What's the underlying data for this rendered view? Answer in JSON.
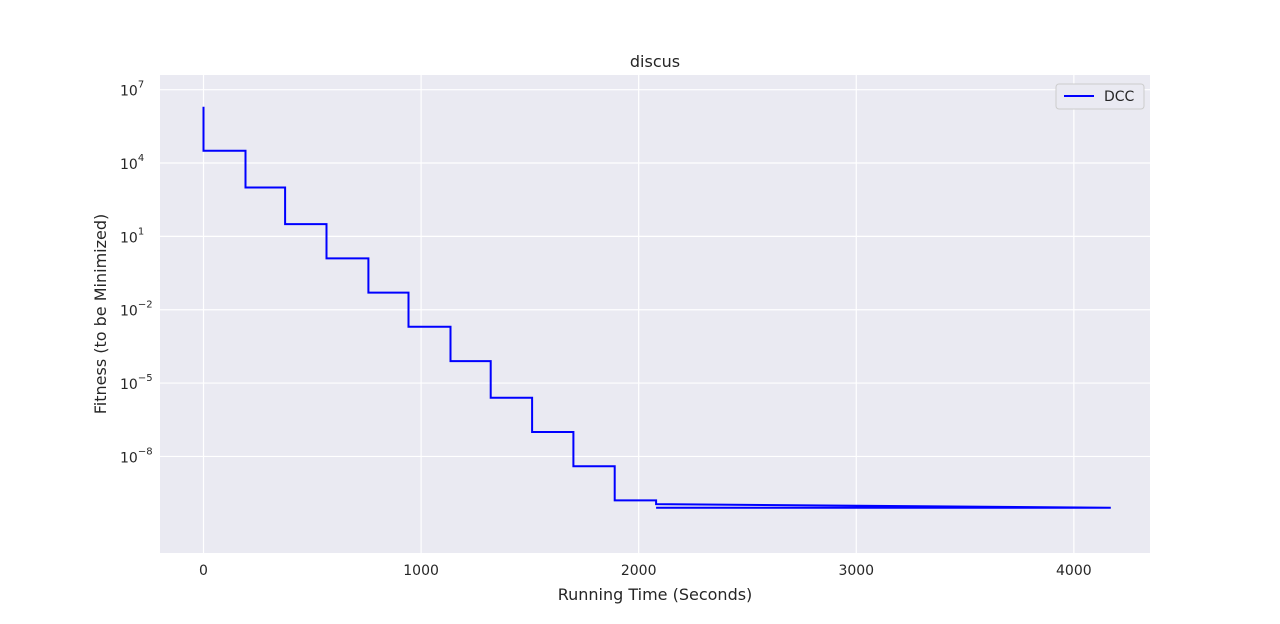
{
  "chart_data": {
    "type": "line",
    "title": "discus",
    "xlabel": "Running Time (Seconds)",
    "ylabel": "Fitness (to be Minimized)",
    "xlim": [
      -200,
      4350
    ],
    "yscale": "log",
    "ylim_exponent": [
      -11.95,
      7.6
    ],
    "x_ticks": [
      0,
      1000,
      2000,
      3000,
      4000
    ],
    "x_tick_labels": [
      "0",
      "1000",
      "2000",
      "3000",
      "4000"
    ],
    "y_tick_exponents": [
      7,
      4,
      1,
      -2,
      -5,
      -8
    ],
    "y_tick_bases": [
      "10",
      "10",
      "10",
      "10",
      "10",
      "10"
    ],
    "y_tick_sups": [
      "7",
      "4",
      "1",
      "−2",
      "−5",
      "−8"
    ],
    "grid": true,
    "legend": "top-right",
    "background": "#eaeaf2",
    "grid_color": "#ffffff",
    "series": [
      {
        "name": "DCC",
        "color": "#0000ff",
        "points_log10y": [
          [
            0,
            6.3
          ],
          [
            0,
            4.5
          ],
          [
            193,
            4.5
          ],
          [
            193,
            3.0
          ],
          [
            375,
            3.0
          ],
          [
            375,
            1.5
          ],
          [
            565,
            1.5
          ],
          [
            565,
            0.1
          ],
          [
            758,
            0.1
          ],
          [
            758,
            -1.3
          ],
          [
            942,
            -1.3
          ],
          [
            942,
            -2.7
          ],
          [
            1135,
            -2.7
          ],
          [
            1135,
            -4.1
          ],
          [
            1320,
            -4.1
          ],
          [
            1320,
            -5.6
          ],
          [
            1510,
            -5.6
          ],
          [
            1510,
            -7.0
          ],
          [
            1700,
            -7.0
          ],
          [
            1700,
            -8.4
          ],
          [
            1890,
            -8.4
          ],
          [
            1890,
            -9.8
          ],
          [
            2080,
            -9.8
          ],
          [
            2080,
            -9.95
          ],
          [
            4170,
            -10.1
          ],
          [
            2080,
            -10.1
          ]
        ]
      }
    ]
  }
}
